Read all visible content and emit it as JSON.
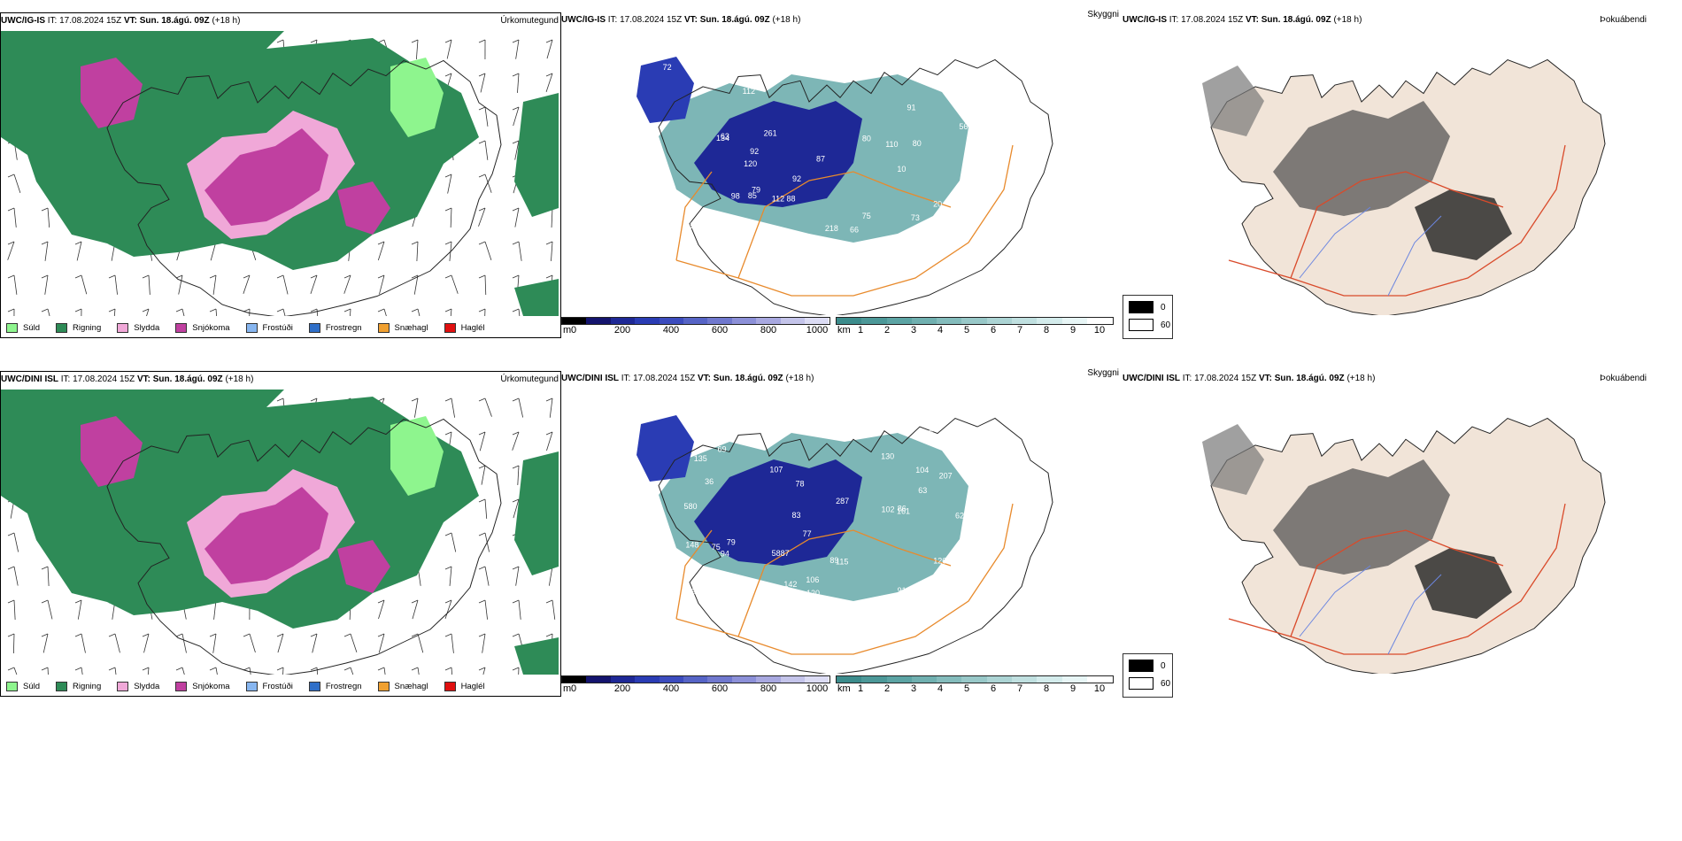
{
  "rows": [
    {
      "model": "UWC/IG-IS",
      "it_label": "IT:",
      "it_value": "17.08.2024 15Z",
      "vt_label": "VT:",
      "vt_value": "Sun. 18.ágú. 09Z",
      "lead": "(+18 h)"
    },
    {
      "model": "UWC/DINI ISL",
      "it_label": "IT:",
      "it_value": "17.08.2024 15Z",
      "vt_label": "VT:",
      "vt_value": "Sun. 18.ágú. 09Z",
      "lead": "(+18 h)"
    }
  ],
  "panel_titles": {
    "precip": "Úrkomutegund",
    "visibility": "Skyggni",
    "fog": "Þokuábendi"
  },
  "precip_legend": [
    {
      "label": "Súld",
      "color": "#8ef58e"
    },
    {
      "label": "Rigning",
      "color": "#2e8b57"
    },
    {
      "label": "Slydda",
      "color": "#f0a8d8"
    },
    {
      "label": "Snjókoma",
      "color": "#c040a0"
    },
    {
      "label": "Frostúði",
      "color": "#87b6f0"
    },
    {
      "label": "Frostregn",
      "color": "#2f6fc8"
    },
    {
      "label": "Snæhagl",
      "color": "#f0a030"
    },
    {
      "label": "Haglél",
      "color": "#e01010"
    }
  ],
  "cloud_base_scale": {
    "unit": "m",
    "ticks": [
      "0",
      "200",
      "400",
      "600",
      "800",
      "1000"
    ],
    "colors": [
      "#000000",
      "#14146e",
      "#1e2896",
      "#2a3cb4",
      "#3c4cbe",
      "#5664c6",
      "#7078ce",
      "#8c90d8",
      "#a8a8e0",
      "#c4c4ea",
      "#dcdcf4"
    ]
  },
  "visibility_scale": {
    "unit": "km",
    "ticks": [
      "1",
      "2",
      "3",
      "4",
      "5",
      "6",
      "7",
      "8",
      "9",
      "10"
    ],
    "colors": [
      "#3c8c8c",
      "#4c9898",
      "#5ca4a4",
      "#70b0b0",
      "#84bcbc",
      "#98c8c8",
      "#acd4d4",
      "#c0e0e0",
      "#d4ecec",
      "#e8f6f6",
      "#ffffff"
    ]
  },
  "fog_legend": [
    {
      "label": "0",
      "color": "#000000"
    },
    {
      "label": "60",
      "color": "#ffffff"
    }
  ],
  "cloud_base_labels_top": [
    "92",
    "134",
    "120",
    "10",
    "90",
    "112",
    "88",
    "120",
    "85",
    "110",
    "80",
    "90",
    "72",
    "147",
    "92",
    "75",
    "87",
    "56",
    "196",
    "261",
    "376",
    "63",
    "66",
    "98",
    "73",
    "80",
    "218",
    "76",
    "91",
    "130",
    "79",
    "112",
    "159",
    "20"
  ],
  "cloud_base_labels_bottom": [
    "102",
    "91",
    "86",
    "77",
    "106",
    "107",
    "83",
    "75",
    "87",
    "62",
    "94",
    "69",
    "94",
    "207",
    "199",
    "160",
    "115",
    "78",
    "580",
    "287",
    "89",
    "135",
    "79",
    "161",
    "58",
    "126",
    "142",
    "36",
    "87",
    "104",
    "63",
    "120",
    "52",
    "130",
    "148"
  ]
}
